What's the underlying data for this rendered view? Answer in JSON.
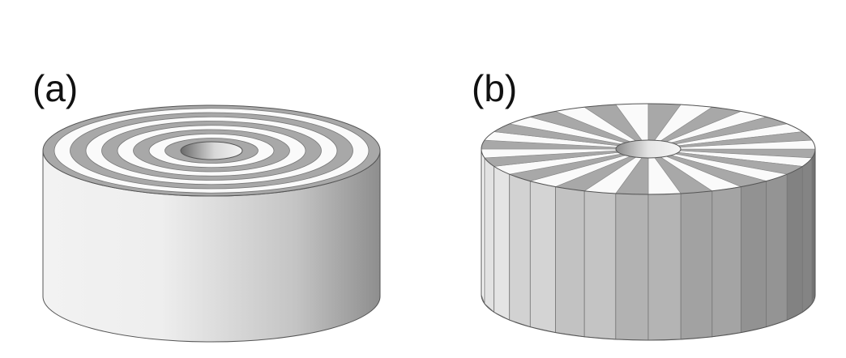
{
  "panels": [
    {
      "label": "(a)",
      "pattern": "concentric-rings",
      "ring_count": 4
    },
    {
      "label": "(b)",
      "pattern": "radial-sectors",
      "sector_count": 32
    }
  ],
  "colors": {
    "stripe_gray": "#a8a8a8",
    "stripe_white": "#fafafa",
    "outline": "#555555"
  }
}
